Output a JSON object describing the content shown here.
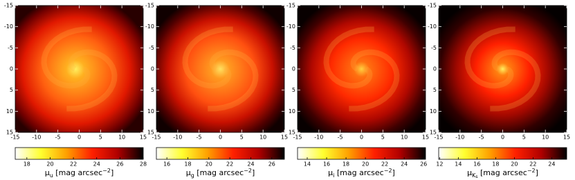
{
  "chart_data": [
    {
      "type": "image",
      "xlim": [
        -15,
        15
      ],
      "ylim": [
        -15,
        15
      ],
      "y_inverted": true,
      "xticks": [
        -15,
        -10,
        -5,
        0,
        5,
        10,
        15
      ],
      "yticks": [
        -15,
        -10,
        -5,
        0,
        5,
        10,
        15
      ],
      "colormap": [
        "#ffffff",
        "#ffff30",
        "#ffa000",
        "#ff2000",
        "#b00000",
        "#000000"
      ],
      "colorbar": {
        "clim": [
          17,
          28
        ],
        "ticks": [
          18,
          20,
          22,
          24,
          26,
          28
        ],
        "label": {
          "symbol": "μ",
          "subscript": "u",
          "unit": " [mag arcsec",
          "exponent": "−2",
          "close": "]"
        }
      }
    },
    {
      "type": "image",
      "xlim": [
        -15,
        15
      ],
      "ylim": [
        -15,
        15
      ],
      "y_inverted": true,
      "xticks": [
        -15,
        -10,
        -5,
        0,
        5,
        10,
        15
      ],
      "yticks": [
        -15,
        -10,
        -5,
        0,
        5,
        10,
        15
      ],
      "colormap": [
        "#ffffff",
        "#ffff30",
        "#ffa000",
        "#ff2000",
        "#b00000",
        "#000000"
      ],
      "colorbar": {
        "clim": [
          15,
          27.2
        ],
        "ticks": [
          16,
          18,
          20,
          22,
          24,
          26
        ],
        "label": {
          "symbol": "μ",
          "subscript": "g",
          "unit": " [mag arcsec",
          "exponent": "−2",
          "close": "]"
        }
      }
    },
    {
      "type": "image",
      "xlim": [
        -15,
        15
      ],
      "ylim": [
        -15,
        15
      ],
      "y_inverted": true,
      "xticks": [
        -15,
        -10,
        -5,
        0,
        5,
        10,
        15
      ],
      "yticks": [
        -15,
        -10,
        -5,
        0,
        5,
        10,
        15
      ],
      "colormap": [
        "#ffffff",
        "#ffff30",
        "#ffa000",
        "#ff2000",
        "#b00000",
        "#000000"
      ],
      "colorbar": {
        "clim": [
          13,
          26.2
        ],
        "ticks": [
          14,
          16,
          18,
          20,
          22,
          24,
          26
        ],
        "label": {
          "symbol": "μ",
          "subscript": "i",
          "unit": " [mag arcsec",
          "exponent": "−2",
          "close": "]"
        }
      }
    },
    {
      "type": "image",
      "xlim": [
        -15,
        15
      ],
      "ylim": [
        -15,
        15
      ],
      "y_inverted": true,
      "xticks": [
        -15,
        -10,
        -5,
        0,
        5,
        10,
        15
      ],
      "yticks": [
        -15,
        -10,
        -5,
        0,
        5,
        10,
        15
      ],
      "colormap": [
        "#ffffff",
        "#ffff30",
        "#ffa000",
        "#ff2000",
        "#b00000",
        "#000000"
      ],
      "colorbar": {
        "clim": [
          11.9,
          25.6
        ],
        "ticks": [
          12,
          14,
          16,
          18,
          20,
          22,
          24
        ],
        "label": {
          "symbol": "μ",
          "subscript": "K",
          "subsubscript": "s",
          "unit": " [mag arcsec",
          "exponent": "−2",
          "close": "]"
        }
      }
    }
  ]
}
